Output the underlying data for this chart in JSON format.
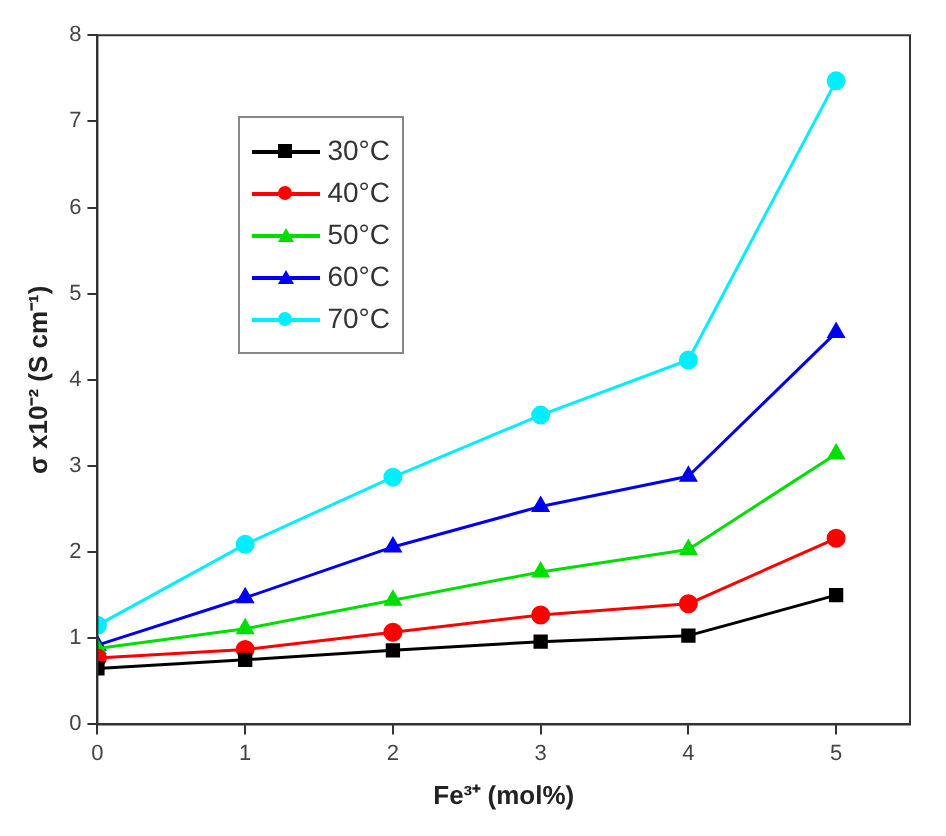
{
  "chart_data": {
    "type": "line",
    "xlabel": "Fe³⁺ (mol%)",
    "ylabel": "σ x10⁻² (S cm⁻¹)",
    "x": [
      0,
      1,
      2,
      3,
      4,
      5
    ],
    "xlim": [
      0,
      5.5
    ],
    "xticks": [
      0,
      1,
      2,
      3,
      4,
      5
    ],
    "ylim": [
      0,
      8
    ],
    "yticks": [
      0,
      1,
      2,
      3,
      4,
      5,
      6,
      7,
      8
    ],
    "grid": false,
    "legend": "top left",
    "line_style": "solid",
    "series": [
      {
        "name": "30°C",
        "color": "#000000",
        "marker": "square",
        "values": [
          0.65,
          0.75,
          0.86,
          0.96,
          1.03,
          1.5
        ]
      },
      {
        "name": "40°C",
        "color": "#ff0000",
        "marker": "circle",
        "values": [
          0.77,
          0.87,
          1.07,
          1.27,
          1.4,
          2.16
        ]
      },
      {
        "name": "50°C",
        "color": "#00dd00",
        "marker": "triangle",
        "values": [
          0.88,
          1.11,
          1.44,
          1.77,
          2.03,
          3.14
        ]
      },
      {
        "name": "60°C",
        "color": "#0000ee",
        "marker": "triangle",
        "values": [
          0.92,
          1.47,
          2.06,
          2.53,
          2.88,
          4.55
        ]
      },
      {
        "name": "70°C",
        "color": "#00eeff",
        "marker": "circle",
        "values": [
          1.15,
          2.09,
          2.87,
          3.59,
          4.23,
          7.47
        ]
      }
    ]
  }
}
